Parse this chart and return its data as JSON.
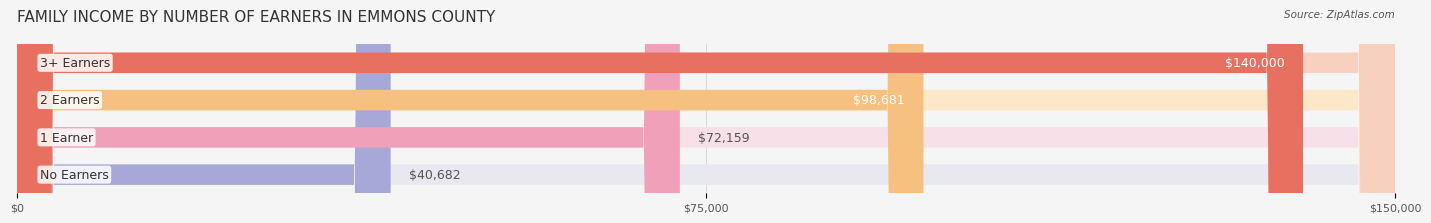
{
  "title": "FAMILY INCOME BY NUMBER OF EARNERS IN EMMONS COUNTY",
  "source": "Source: ZipAtlas.com",
  "categories": [
    "No Earners",
    "1 Earner",
    "2 Earners",
    "3+ Earners"
  ],
  "values": [
    40682,
    72159,
    98681,
    140000
  ],
  "bar_colors": [
    "#a8a8d8",
    "#f0a0b8",
    "#f5c080",
    "#e87060"
  ],
  "bar_bg_colors": [
    "#e8e8f0",
    "#f8e0e8",
    "#fce8c8",
    "#f8d0c0"
  ],
  "value_labels": [
    "$40,682",
    "$72,159",
    "$98,681",
    "$140,000"
  ],
  "value_label_colors": [
    "#555555",
    "#555555",
    "#ffffff",
    "#ffffff"
  ],
  "xmax": 150000,
  "xticks": [
    0,
    75000,
    150000
  ],
  "xticklabels": [
    "$0",
    "$75,000",
    "$150,000"
  ],
  "title_fontsize": 11,
  "label_fontsize": 9,
  "value_fontsize": 9,
  "background_color": "#f5f5f5"
}
